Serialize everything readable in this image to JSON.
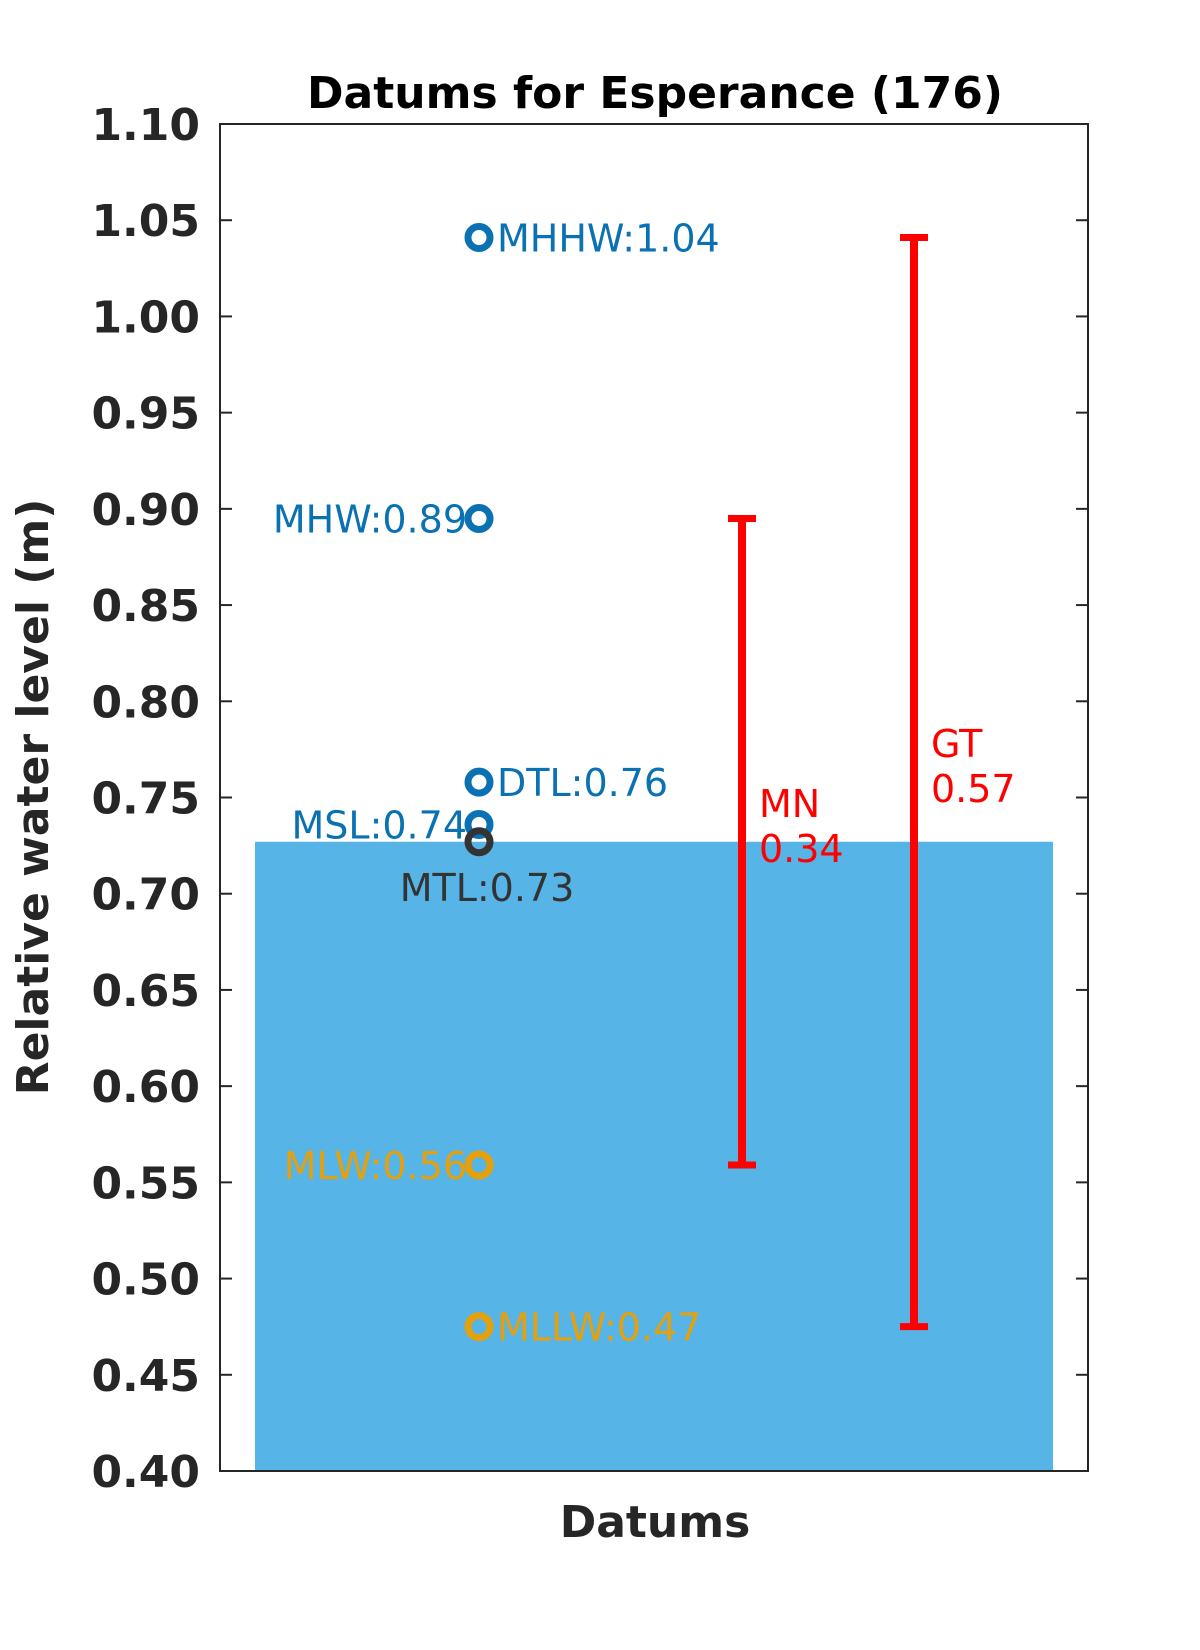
{
  "chart_data": {
    "type": "bar",
    "title": "Datums for Esperance (176)",
    "xlabel": "Datums",
    "ylabel": "Relative water level (m)",
    "ylim": [
      0.4,
      1.1
    ],
    "yticks": [
      "0.40",
      "0.45",
      "0.50",
      "0.55",
      "0.60",
      "0.65",
      "0.70",
      "0.75",
      "0.80",
      "0.85",
      "0.90",
      "0.95",
      "1.00",
      "1.05",
      "1.10"
    ],
    "grid": false,
    "bar": {
      "value": 0.727,
      "color": "#56b4e6"
    },
    "datums": [
      {
        "name": "MHHW",
        "value": 1.041,
        "label": "MHHW:1.04",
        "side": "right",
        "color": "#0a71b2"
      },
      {
        "name": "MHW",
        "value": 0.895,
        "label": "MHW:0.89",
        "side": "left",
        "color": "#0a71b2"
      },
      {
        "name": "DTL",
        "value": 0.758,
        "label": "DTL:0.76",
        "side": "right",
        "color": "#0a71b2"
      },
      {
        "name": "MSL",
        "value": 0.736,
        "label": "MSL:0.74",
        "side": "left",
        "color": "#0a71b2"
      },
      {
        "name": "MTL",
        "value": 0.727,
        "label": "MTL:0.73",
        "side": "below",
        "color": "#333333"
      },
      {
        "name": "MLW",
        "value": 0.559,
        "label": "MLW:0.56",
        "side": "left",
        "color": "#e5a00d"
      },
      {
        "name": "MLLW",
        "value": 0.475,
        "label": "MLLW:0.47",
        "side": "right",
        "color": "#e5a00d"
      }
    ],
    "ranges": [
      {
        "name": "MN",
        "low": 0.559,
        "high": 0.895,
        "label_name": "MN",
        "label_value": "0.34",
        "color": "#ff0000"
      },
      {
        "name": "GT",
        "low": 0.475,
        "high": 1.041,
        "label_name": "GT",
        "label_value": "0.57",
        "color": "#ff0000"
      }
    ]
  }
}
